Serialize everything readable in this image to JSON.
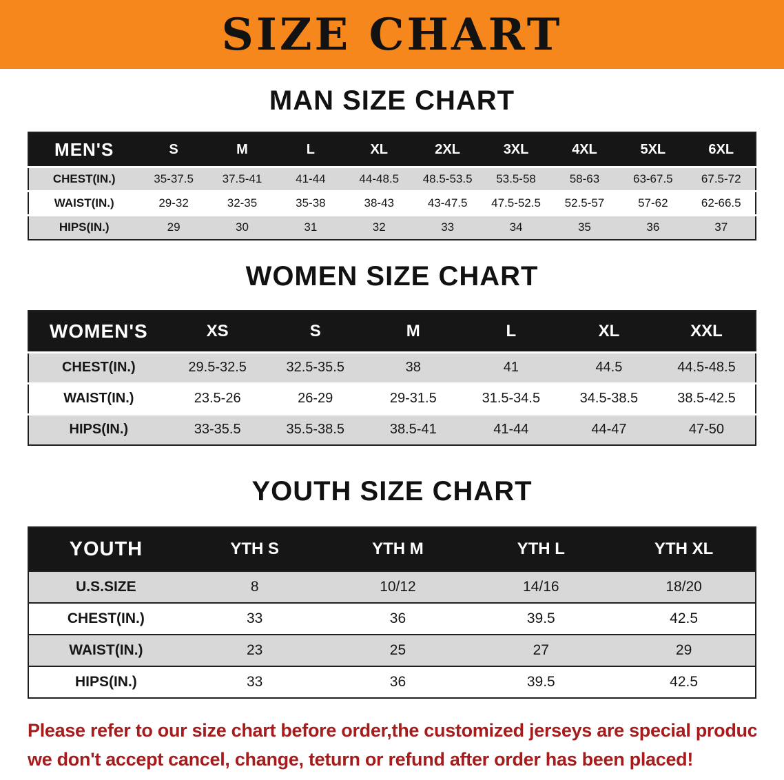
{
  "banner": {
    "title": "SIZE CHART"
  },
  "colors": {
    "banner_bg": "#F6871D",
    "banner_text": "#121212",
    "table_header_bg": "#161616",
    "table_header_text": "#ffffff",
    "row_gray": "#d8d8d8",
    "row_white": "#ffffff",
    "border_dark": "#1f1f1f",
    "note_text": "#A61B1B"
  },
  "sections": [
    {
      "id": "men",
      "heading": "MAN SIZE CHART",
      "columns": [
        "MEN'S",
        "S",
        "M",
        "L",
        "XL",
        "2XL",
        "3XL",
        "4XL",
        "5XL",
        "6XL"
      ],
      "rows": [
        [
          "CHEST(IN.)",
          "35-37.5",
          "37.5-41",
          "41-44",
          "44-48.5",
          "48.5-53.5",
          "53.5-58",
          "58-63",
          "63-67.5",
          "67.5-72"
        ],
        [
          "WAIST(IN.)",
          "29-32",
          "32-35",
          "35-38",
          "38-43",
          "43-47.5",
          "47.5-52.5",
          "52.5-57",
          "57-62",
          "62-66.5"
        ],
        [
          "HIPS(IN.)",
          "29",
          "30",
          "31",
          "32",
          "33",
          "34",
          "35",
          "36",
          "37"
        ]
      ]
    },
    {
      "id": "women",
      "heading": "WOMEN SIZE CHART",
      "columns": [
        "WOMEN'S",
        "XS",
        "S",
        "M",
        "L",
        "XL",
        "XXL"
      ],
      "rows": [
        [
          "CHEST(IN.)",
          "29.5-32.5",
          "32.5-35.5",
          "38",
          "41",
          "44.5",
          "44.5-48.5"
        ],
        [
          "WAIST(IN.)",
          "23.5-26",
          "26-29",
          "29-31.5",
          "31.5-34.5",
          "34.5-38.5",
          "38.5-42.5"
        ],
        [
          "HIPS(IN.)",
          "33-35.5",
          "35.5-38.5",
          "38.5-41",
          "41-44",
          "44-47",
          "47-50"
        ]
      ]
    },
    {
      "id": "youth",
      "heading": "YOUTH SIZE CHART",
      "columns": [
        "YOUTH",
        "YTH S",
        "YTH M",
        "YTH L",
        "YTH XL"
      ],
      "rows": [
        [
          "U.S.SIZE",
          "8",
          "10/12",
          "14/16",
          "18/20"
        ],
        [
          "CHEST(IN.)",
          "33",
          "36",
          "39.5",
          "42.5"
        ],
        [
          "WAIST(IN.)",
          "23",
          "25",
          "27",
          "29"
        ],
        [
          "HIPS(IN.)",
          "33",
          "36",
          "39.5",
          "42.5"
        ]
      ]
    }
  ],
  "note": {
    "line1": "Please refer to our size chart before order,the customized jerseys are special products,",
    "line2": "we don't accept cancel, change, teturn or refund after order has been placed!"
  }
}
